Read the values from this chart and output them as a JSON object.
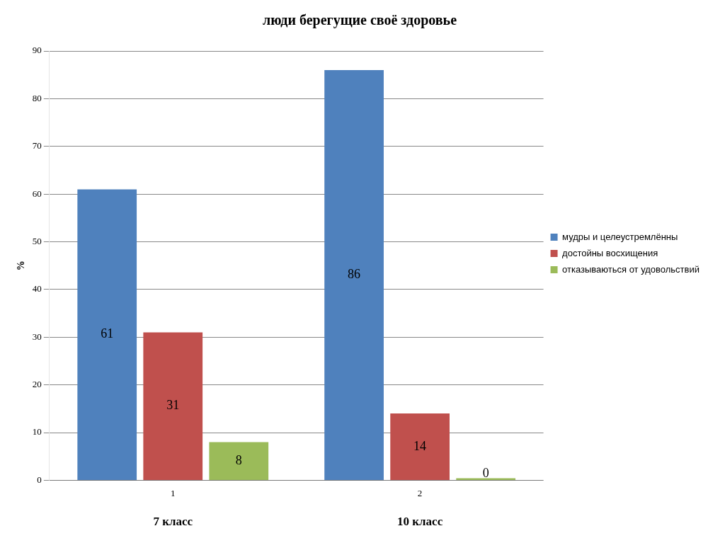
{
  "chart_data": {
    "type": "bar",
    "title": "люди берегущие своё здоровье",
    "ylabel": "%",
    "categories": [
      "1",
      "2"
    ],
    "series": [
      {
        "name": "мудры и целеустремлённы",
        "color": "#4f81bd",
        "values": [
          61,
          86
        ]
      },
      {
        "name": "достойны восхищения",
        "color": "#c0504d",
        "values": [
          31,
          14
        ]
      },
      {
        "name": "отказываються от удовольствий",
        "color": "#9bbb59",
        "values": [
          8,
          0
        ]
      }
    ],
    "ylim": [
      0,
      90
    ],
    "yticks": [
      0,
      10,
      20,
      30,
      40,
      50,
      60,
      70,
      80,
      90
    ],
    "grid": "y",
    "legend": "right",
    "data_labels": true,
    "annotations": [
      "7 класс",
      "10 класс"
    ]
  }
}
